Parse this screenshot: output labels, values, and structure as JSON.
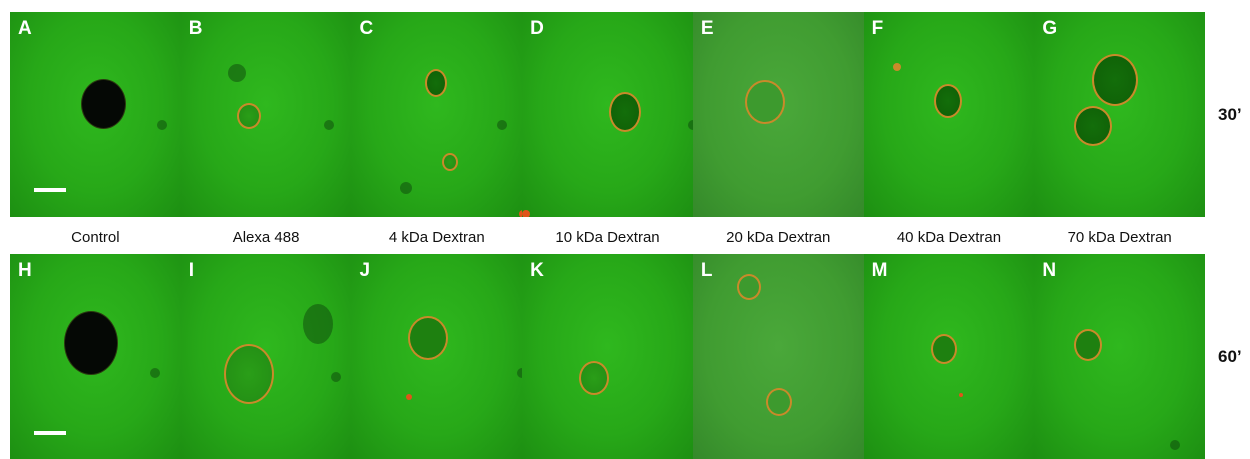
{
  "top_row": {
    "time": "30’",
    "panels": [
      {
        "letter": "A"
      },
      {
        "letter": "B"
      },
      {
        "letter": "C"
      },
      {
        "letter": "D"
      },
      {
        "letter": "E"
      },
      {
        "letter": "F"
      },
      {
        "letter": "G"
      }
    ]
  },
  "bottom_row": {
    "time": "60’",
    "panels": [
      {
        "letter": "H"
      },
      {
        "letter": "I"
      },
      {
        "letter": "J"
      },
      {
        "letter": "K"
      },
      {
        "letter": "L"
      },
      {
        "letter": "M"
      },
      {
        "letter": "N"
      }
    ]
  },
  "column_labels": [
    "Control",
    "Alexa 488",
    "4 kDa Dextran",
    "10 kDa Dextran",
    "20 kDa Dextran",
    "40 kDa Dextran",
    "70 kDa Dextran"
  ],
  "colors": {
    "background": "#2fb81e",
    "membrane": "#c98a2a",
    "label_text": "#ffffff"
  }
}
